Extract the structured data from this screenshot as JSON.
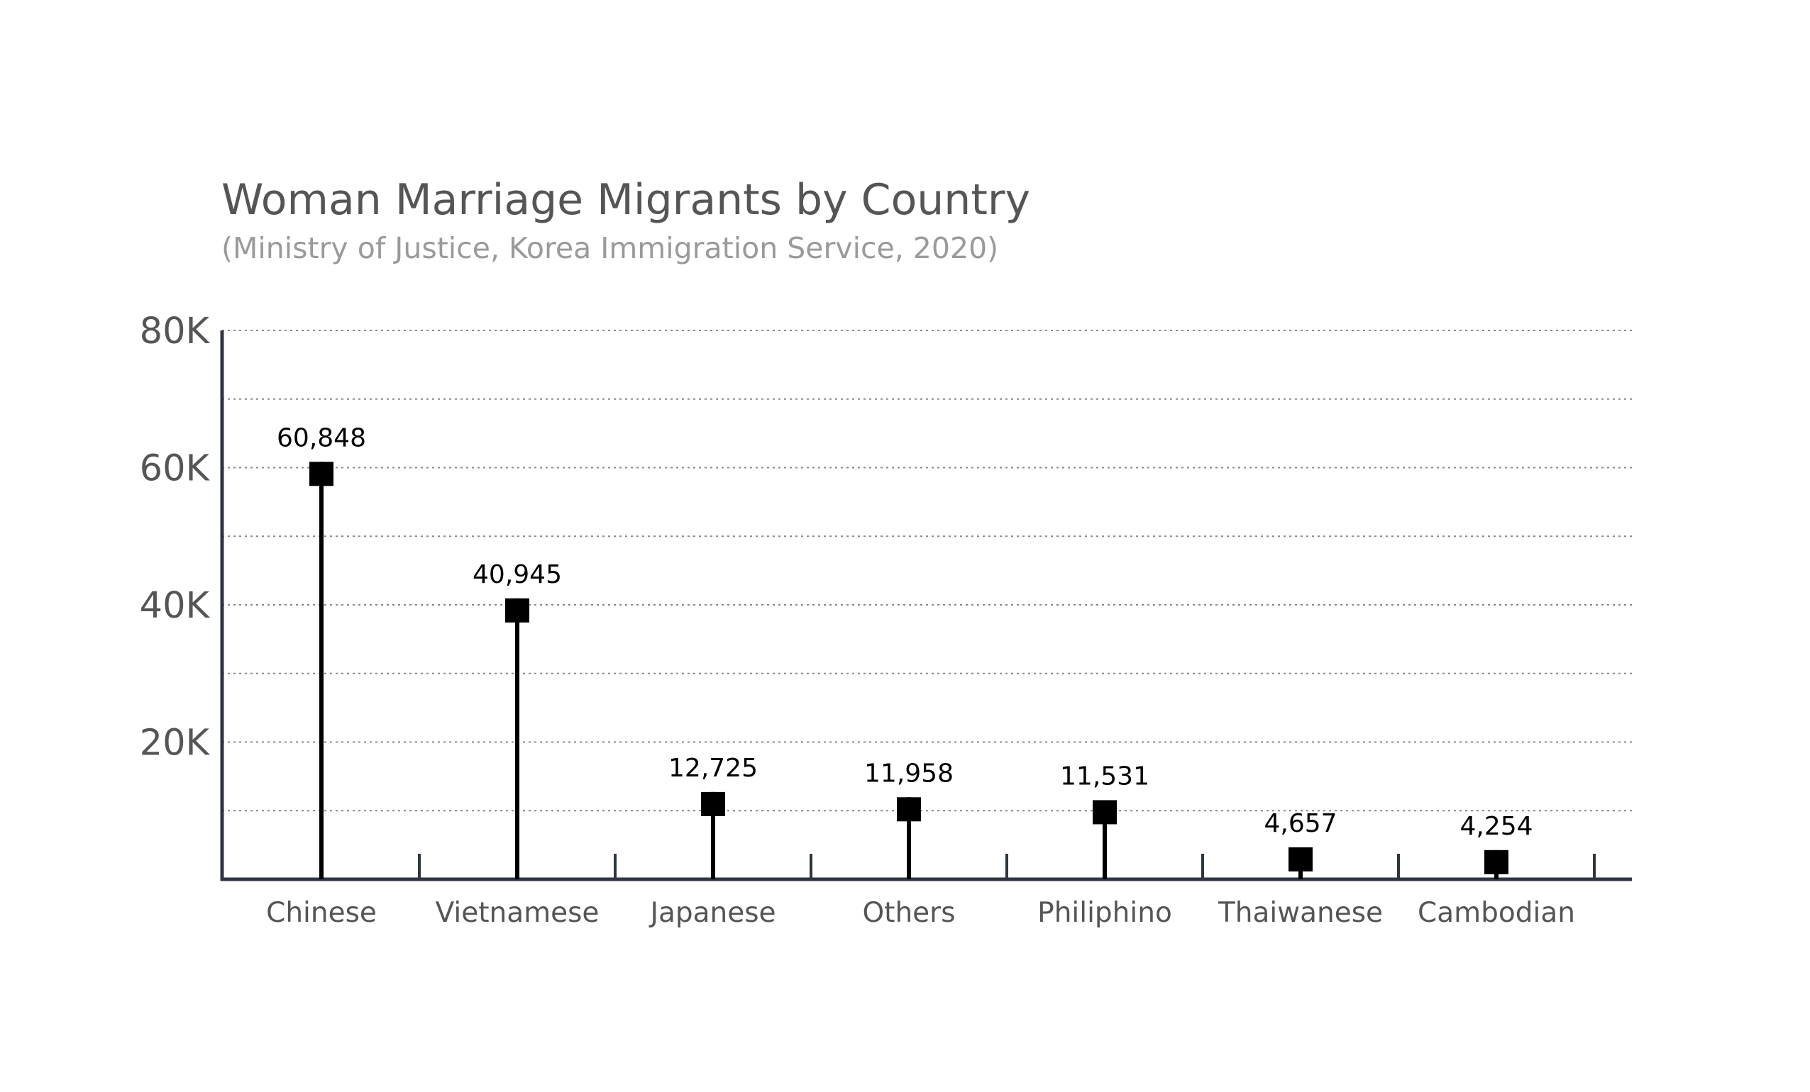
{
  "chart_data": {
    "type": "lollipop",
    "title": "Woman Marriage Migrants by Country",
    "subtitle": "(Ministry of Justice, Korea Immigration Service, 2020)",
    "xlabel": "",
    "ylabel": "",
    "categories": [
      "Chinese",
      "Vietnamese",
      "Japanese",
      "Others",
      "Philiphino",
      "Thaiwanese",
      "Cambodian"
    ],
    "values": [
      60848,
      40945,
      12725,
      11958,
      11531,
      4657,
      4254
    ],
    "data_labels": [
      "60,848",
      "40,945",
      "12,725",
      "11,958",
      "11,531",
      "4,657",
      "4,254"
    ],
    "ylim": [
      0,
      80000
    ],
    "y_ticks": [
      20000,
      40000,
      60000,
      80000
    ],
    "y_tick_labels": [
      "20K",
      "40K",
      "60K",
      "80K"
    ],
    "grid": true,
    "marker": "square",
    "colors": {
      "mark": "#000000",
      "axis": "#2f3540",
      "grid": "#888888",
      "title": "#555555",
      "subtitle": "#9a9a9a"
    }
  }
}
